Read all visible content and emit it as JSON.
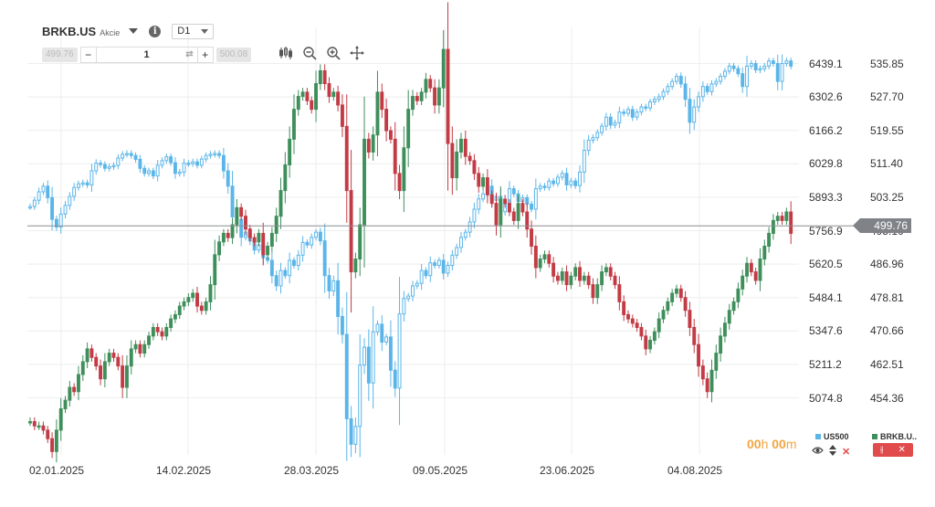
{
  "header": {
    "symbol": "BRKB.US",
    "symbol_type": "Akcie",
    "info_glyph": "i",
    "timeframe": "D1"
  },
  "trade": {
    "sell_price": "499.76",
    "minus_label": "−",
    "quantity": "1",
    "swap_glyph": "⇄",
    "plus_label": "+",
    "buy_price": "500.08"
  },
  "tools": {
    "candles_icon": "candlestick-type-icon",
    "zoom_out_icon": "zoom-out-icon",
    "zoom_in_icon": "zoom-in-icon",
    "crosshair_icon": "crosshair-icon"
  },
  "timer": {
    "hours": "00",
    "h_unit": "h",
    "minutes": "00",
    "m_unit": "m"
  },
  "legend": {
    "us500": "US500",
    "brkb": "BRKB.U..",
    "us500_color": "#5bb5e8",
    "brkb_color": "#3f8f5b"
  },
  "controls": {
    "eye": "👁",
    "updown": "⇕",
    "close": "✕",
    "red_btn_icon": "⫲",
    "red_btn_close": "✕"
  },
  "chart_data": {
    "type": "candlestick",
    "x_ticks": [
      "02.01.2025",
      "14.02.2025",
      "28.03.2025",
      "09.05.2025",
      "23.06.2025",
      "04.08.2025"
    ],
    "y_left_ticks": [
      "6439.1",
      "6302.6",
      "6166.2",
      "6029.8",
      "5893.3",
      "5756.9",
      "5620.5",
      "5484.1",
      "5347.6",
      "5211.2",
      "5074.8"
    ],
    "y_left_range": [
      4938.4,
      6575.5
    ],
    "y_right_ticks": [
      "535.85",
      "527.70",
      "519.55",
      "511.40",
      "503.25",
      "495.10",
      "486.96",
      "478.81",
      "470.66",
      "462.51",
      "454.36"
    ],
    "y_right_range": [
      446.21,
      544.0
    ],
    "current_price": "499.76",
    "series": [
      {
        "name": "BRKB.US",
        "up_color": "#3f8f5b",
        "down_color": "#c23b45",
        "closes": [
          454,
          453,
          453,
          452,
          450,
          447,
          452,
          457,
          459,
          462,
          461,
          465,
          468,
          471,
          469,
          467,
          464,
          468,
          470,
          469,
          467,
          462,
          467,
          471,
          472,
          470,
          472,
          474,
          476,
          475,
          474,
          476,
          478,
          479,
          481,
          482,
          483,
          484,
          481,
          480,
          482,
          486,
          493,
          496,
          498,
          497,
          500,
          504,
          502,
          499,
          497,
          496,
          498,
          493,
          495,
          498,
          502,
          508,
          514,
          520,
          527,
          530,
          531,
          529,
          527,
          533,
          536,
          533,
          530,
          531,
          528,
          523,
          508,
          489,
          492,
          500,
          520,
          517,
          521,
          531,
          527,
          522,
          520,
          512,
          508,
          518,
          527,
          530,
          529,
          531,
          534,
          532,
          528,
          532,
          541,
          519,
          511,
          517,
          520,
          516,
          515,
          512,
          509,
          511,
          507,
          505,
          500,
          506,
          505,
          503,
          501,
          505,
          503,
          499,
          495,
          490,
          492,
          493,
          491,
          488,
          487,
          489,
          486,
          488,
          490,
          487,
          488,
          486,
          483,
          486,
          489,
          490,
          488,
          486,
          482,
          479,
          478,
          477,
          476,
          474,
          471,
          473,
          475,
          478,
          480,
          482,
          484,
          485,
          483,
          480,
          476,
          472,
          467,
          464,
          461,
          466,
          470,
          474,
          477,
          480,
          482,
          485,
          488,
          491,
          489,
          487,
          492,
          495,
          498,
          501,
          502,
          501,
          503,
          498
        ]
      },
      {
        "name": "US500",
        "color": "#5bb5e8",
        "closes": [
          5910,
          5935,
          5968,
          5990,
          5945,
          5860,
          5830,
          5881,
          5915,
          5950,
          5985,
          5999,
          6003,
          5995,
          6050,
          6080,
          6075,
          6060,
          6066,
          6071,
          6100,
          6115,
          6118,
          6110,
          6095,
          6060,
          6040,
          6050,
          6030,
          6072,
          6090,
          6105,
          6082,
          6040,
          6045,
          6080,
          6078,
          6085,
          6072,
          6096,
          6110,
          6115,
          6118,
          6110,
          6050,
          5990,
          5870,
          5860,
          5790,
          5810,
          5776,
          5740,
          5760,
          5710,
          5700,
          5640,
          5600,
          5660,
          5640,
          5700,
          5680,
          5720,
          5770,
          5760,
          5790,
          5810,
          5776,
          5640,
          5580,
          5620,
          5480,
          5410,
          5080,
          4980,
          5050,
          5290,
          5360,
          5220,
          5420,
          5450,
          5380,
          5400,
          5270,
          5200,
          5490,
          5550,
          5560,
          5600,
          5610,
          5660,
          5640,
          5690,
          5680,
          5700,
          5650,
          5680,
          5720,
          5750,
          5790,
          5810,
          5850,
          5900,
          5940,
          5960,
          5990,
          5935,
          5950,
          5890,
          5920,
          5980,
          5960,
          5930,
          5945,
          5920,
          5900,
          5980,
          5990,
          5985,
          6010,
          6000,
          6025,
          6040,
          5995,
          6010,
          5992,
          6045,
          6130,
          6170,
          6180,
          6200,
          6225,
          6260,
          6229,
          6238,
          6280,
          6275,
          6290,
          6260,
          6280,
          6300,
          6296,
          6320,
          6330,
          6340,
          6360,
          6380,
          6400,
          6420,
          6390,
          6330,
          6240,
          6300,
          6340,
          6380,
          6360,
          6390,
          6400,
          6420,
          6440,
          6460,
          6450,
          6430,
          6380,
          6460,
          6470,
          6445,
          6450,
          6460,
          6480,
          6470,
          6400,
          6470,
          6480,
          6460
        ]
      }
    ],
    "grid": true
  }
}
